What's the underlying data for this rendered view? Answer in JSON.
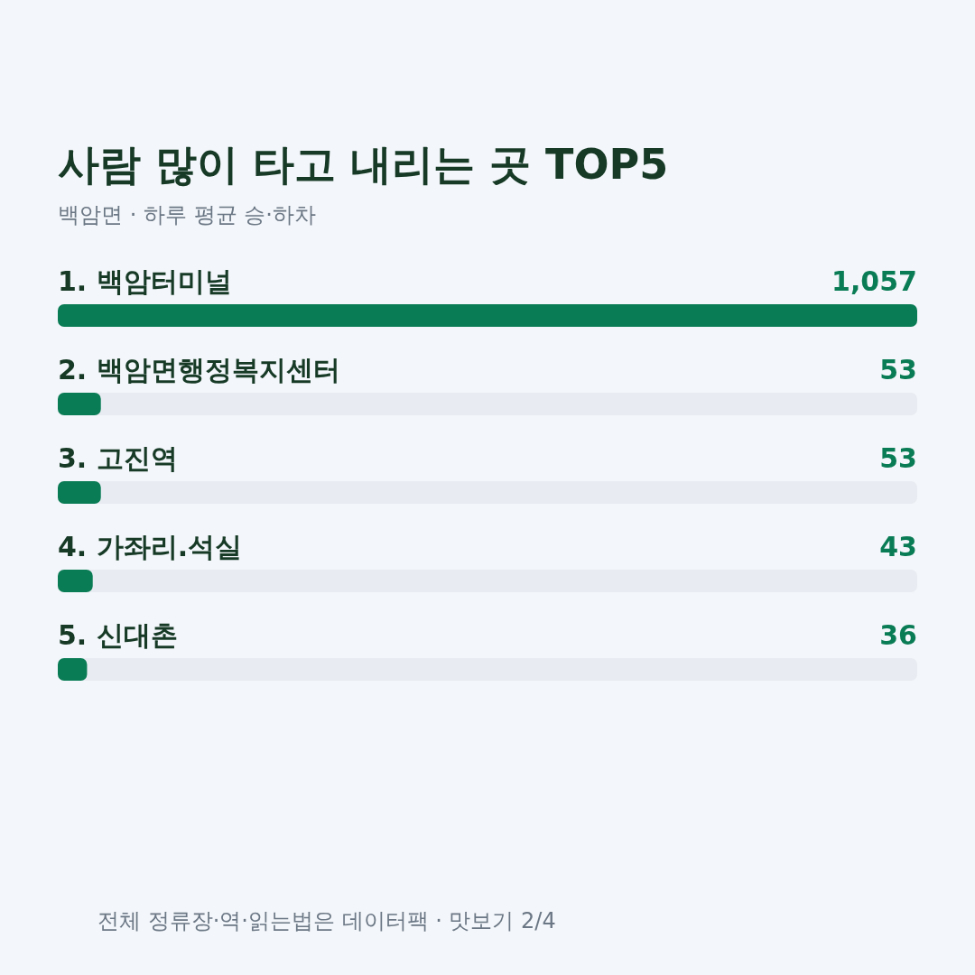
{
  "chart_data": {
    "type": "bar",
    "orientation": "horizontal",
    "title": "사람 많이 타고 내리는 곳 TOP5",
    "subtitle": "백암면 · 하루 평균 승·하차",
    "categories": [
      "1. 백암터미널",
      "2. 백암면행정복지센터",
      "3. 고진역",
      "4. 가좌리.석실",
      "5. 신대촌"
    ],
    "values": [
      1057,
      53,
      53,
      43,
      36
    ],
    "value_labels": [
      "1,057",
      "53",
      "53",
      "43",
      "36"
    ],
    "color": "#0a7c55",
    "annotations": [
      "전체 정류장·역·읽는법은 데이터팩 · 맛보기 2/4"
    ]
  }
}
